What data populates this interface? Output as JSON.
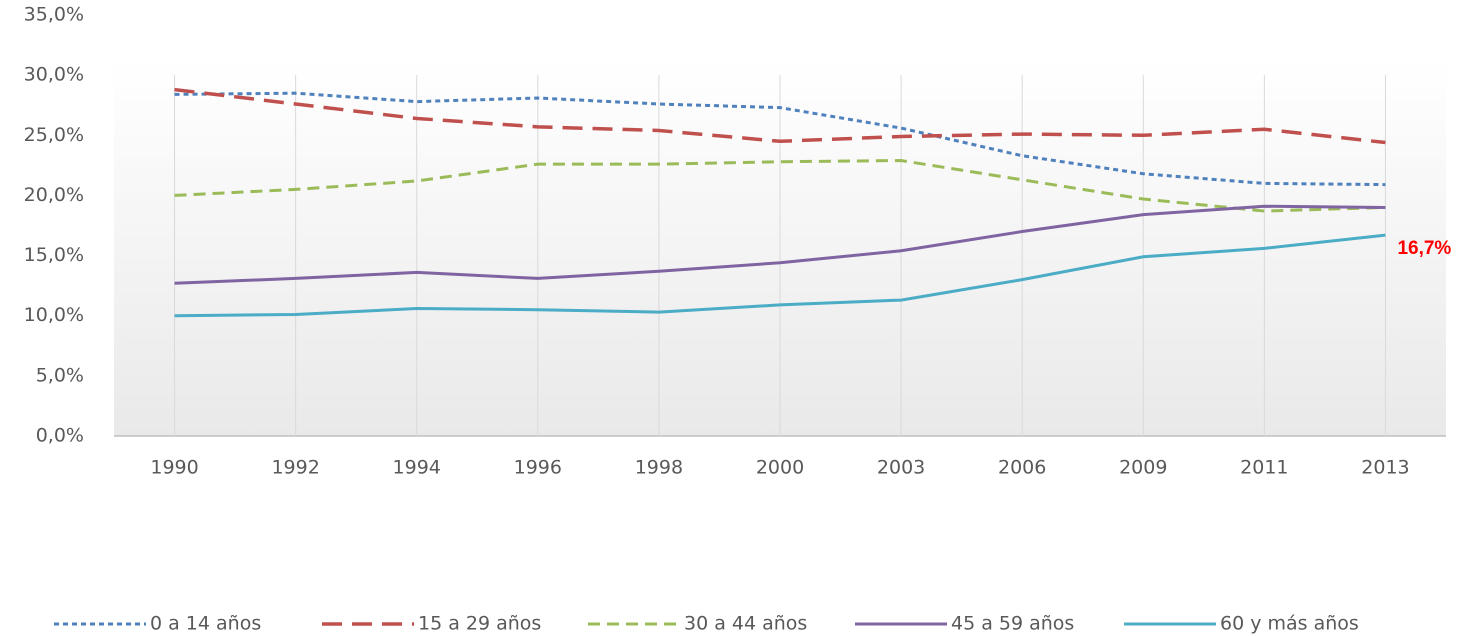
{
  "chart_data": {
    "type": "line",
    "categories": [
      "1990",
      "1992",
      "1994",
      "1996",
      "1998",
      "2000",
      "2003",
      "2006",
      "2009",
      "2011",
      "2013"
    ],
    "series": [
      {
        "name": "0 a 14 años",
        "color": "#4f81bd",
        "line_style": "dot",
        "values": [
          28.4,
          28.5,
          27.8,
          28.1,
          27.6,
          27.3,
          25.6,
          23.3,
          21.8,
          21.0,
          20.9
        ]
      },
      {
        "name": "15 a 29 años",
        "color": "#c0504d",
        "line_style": "longdash",
        "values": [
          28.8,
          27.6,
          26.4,
          25.7,
          25.4,
          24.5,
          24.9,
          25.1,
          25.0,
          25.5,
          24.4
        ]
      },
      {
        "name": "30 a 44 años",
        "color": "#9bbb59",
        "line_style": "dash",
        "values": [
          20.0,
          20.5,
          21.2,
          22.6,
          22.6,
          22.8,
          22.9,
          21.3,
          19.7,
          18.7,
          19.0
        ]
      },
      {
        "name": "45 a 59 años",
        "color": "#8064a2",
        "line_style": "solid",
        "values": [
          12.7,
          13.1,
          13.6,
          13.1,
          13.7,
          14.4,
          15.4,
          17.0,
          18.4,
          19.1,
          19.0
        ]
      },
      {
        "name": "60 y más años",
        "color": "#4bacc6",
        "line_style": "solid",
        "values": [
          10.0,
          10.1,
          10.6,
          10.5,
          10.3,
          10.9,
          11.3,
          13.0,
          14.9,
          15.6,
          16.7
        ]
      }
    ],
    "annotation": {
      "text": "16,7%",
      "color": "#ff0000"
    },
    "ylim": [
      0,
      35
    ],
    "yticks": [
      {
        "value": 0,
        "label": "0,0%"
      },
      {
        "value": 5,
        "label": "5,0%"
      },
      {
        "value": 10,
        "label": "10,0%"
      },
      {
        "value": 15,
        "label": "15,0%"
      },
      {
        "value": 20,
        "label": "20,0%"
      },
      {
        "value": 25,
        "label": "25,0%"
      },
      {
        "value": 30,
        "label": "30,0%"
      },
      {
        "value": 35,
        "label": "35,0%"
      }
    ],
    "grid": true,
    "legend": "bottom"
  }
}
